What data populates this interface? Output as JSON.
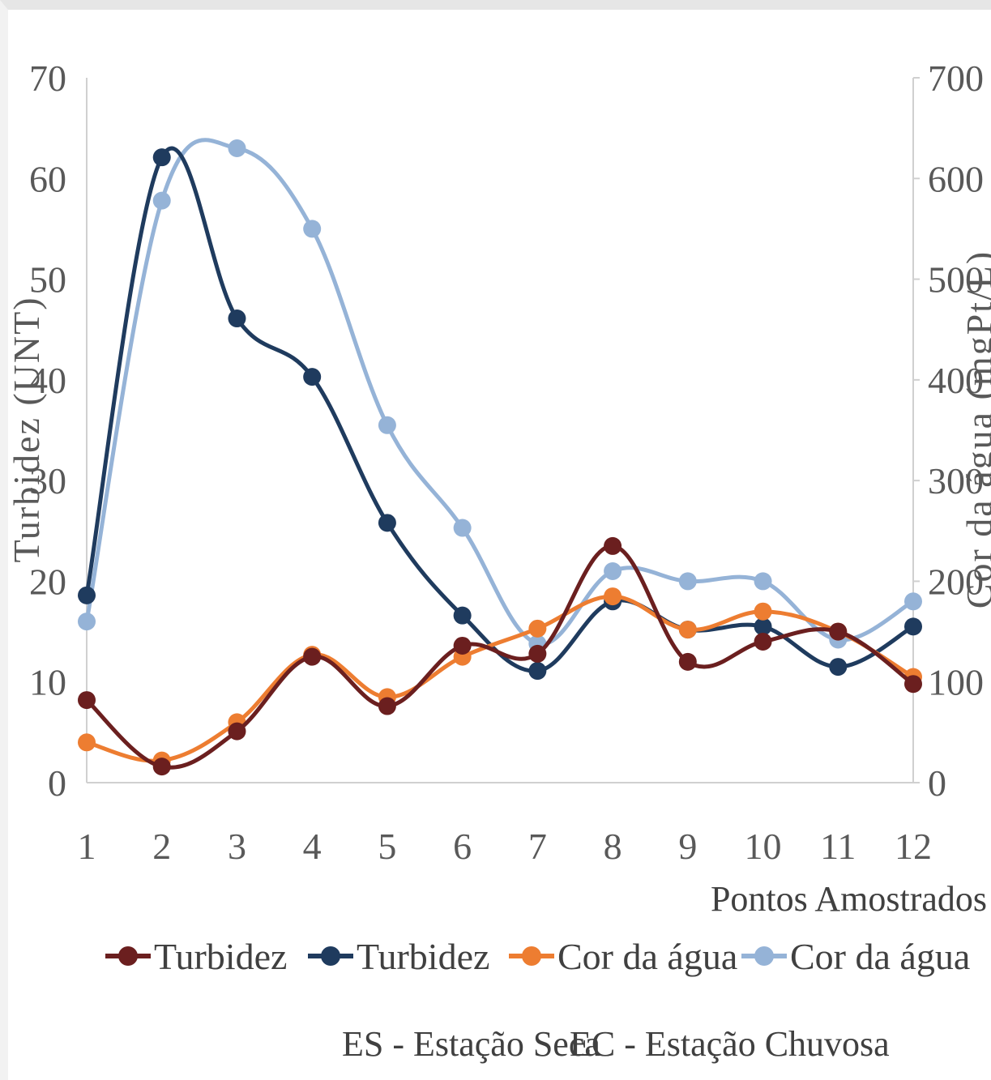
{
  "chart_data": {
    "type": "line",
    "x": [
      1,
      2,
      3,
      4,
      5,
      6,
      7,
      8,
      9,
      10,
      11,
      12
    ],
    "xlabel": "Pontos Amostrados",
    "ylabel_left": "Turbidez (UNT)",
    "ylabel_right": "Cor da água (mgPt/L)",
    "ylim_left": [
      0,
      70
    ],
    "ylim_right": [
      0,
      700
    ],
    "yticks_left": [
      "0",
      "10",
      "20",
      "30",
      "40",
      "50",
      "60",
      "70"
    ],
    "yticks_right": [
      "0",
      "100",
      "200",
      "300",
      "400",
      "500",
      "600",
      "700"
    ],
    "xticks": [
      "1",
      "2",
      "3",
      "4",
      "5",
      "6",
      "7",
      "8",
      "9",
      "10",
      "11",
      "12"
    ],
    "series": [
      {
        "name": "Turbidez",
        "axis": "left",
        "color": "#6b1f1f",
        "values": [
          8.2,
          1.6,
          5.1,
          12.5,
          7.6,
          13.6,
          12.8,
          23.5,
          12.0,
          14.0,
          15.0,
          9.8
        ]
      },
      {
        "name": "Turbidez",
        "axis": "left",
        "color": "#1f3b5e",
        "values": [
          18.6,
          62.1,
          46.1,
          40.3,
          25.8,
          16.6,
          11.1,
          18.0,
          15.2,
          15.5,
          11.5,
          15.5
        ]
      },
      {
        "name": "Cor da água",
        "axis": "right",
        "color": "#ed7d31",
        "values": [
          40,
          22,
          60,
          127,
          85,
          125,
          153,
          185,
          152,
          170,
          150,
          105
        ]
      },
      {
        "name": "Cor da água",
        "axis": "right",
        "color": "#95b3d7",
        "values": [
          160,
          578,
          630,
          550,
          355,
          253,
          138,
          210,
          200,
          200,
          142,
          180
        ]
      }
    ],
    "legend_position": "bottom",
    "grid": false
  },
  "notes": {
    "dry": "ES - Estação Seca",
    "wet": "EC - Estação Chuvosa"
  }
}
